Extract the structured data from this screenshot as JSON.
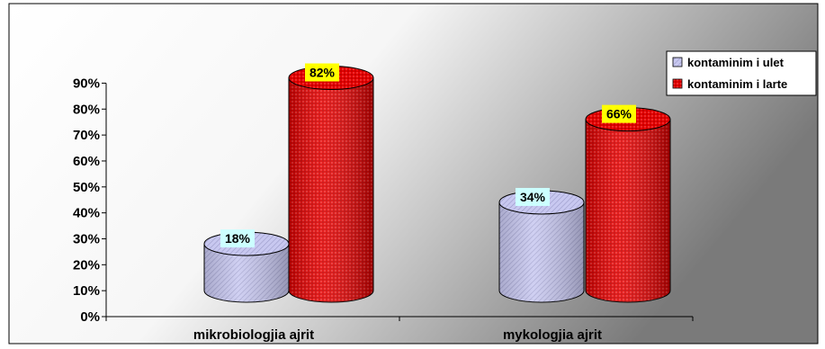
{
  "chart_data": {
    "type": "bar",
    "categories": [
      "mikrobiologjia ajrit",
      "mykologjia ajrit"
    ],
    "series": [
      {
        "name": "kontaminim i ulet",
        "values": [
          18,
          34
        ],
        "color": "#c8c8f0",
        "label_bg": "#ccffff"
      },
      {
        "name": "kontaminim i larte",
        "values": [
          82,
          66
        ],
        "color": "#e00000",
        "label_bg": "#ffff00"
      }
    ],
    "data_labels": [
      [
        "18%",
        "34%"
      ],
      [
        "82%",
        "66%"
      ]
    ],
    "y_ticks": [
      "0%",
      "10%",
      "20%",
      "30%",
      "40%",
      "50%",
      "60%",
      "70%",
      "80%",
      "90%"
    ],
    "ylim": [
      0,
      90
    ],
    "legend_position": "top-right",
    "grid": false,
    "bar_style": "3d-cylinder",
    "background": "gradient white to gray"
  }
}
